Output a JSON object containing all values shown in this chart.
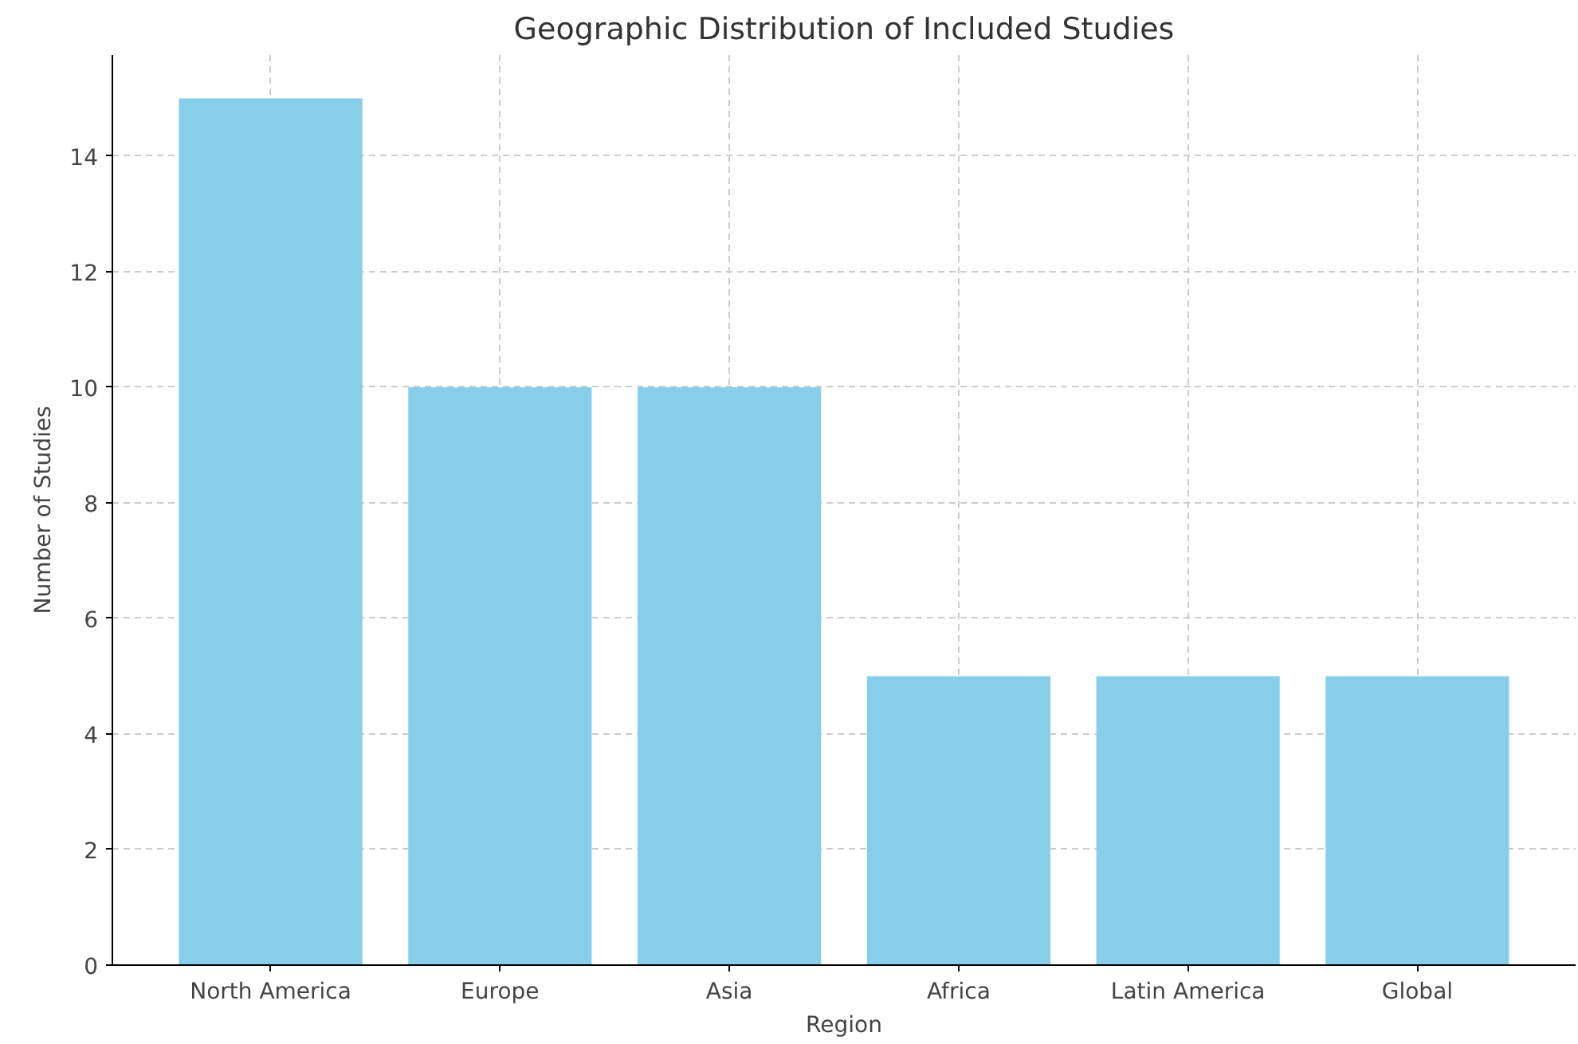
{
  "chart_data": {
    "type": "bar",
    "title": "Geographic Distribution of Included Studies",
    "xlabel": "Region",
    "ylabel": "Number of Studies",
    "categories": [
      "North America",
      "Europe",
      "Asia",
      "Africa",
      "Latin America",
      "Global"
    ],
    "values": [
      15,
      10,
      10,
      5,
      5,
      5
    ],
    "color": "#87ceeb",
    "ylim": [
      0,
      15.75
    ],
    "yticks": [
      0,
      2,
      4,
      6,
      8,
      10,
      12,
      14
    ],
    "grid": true
  }
}
